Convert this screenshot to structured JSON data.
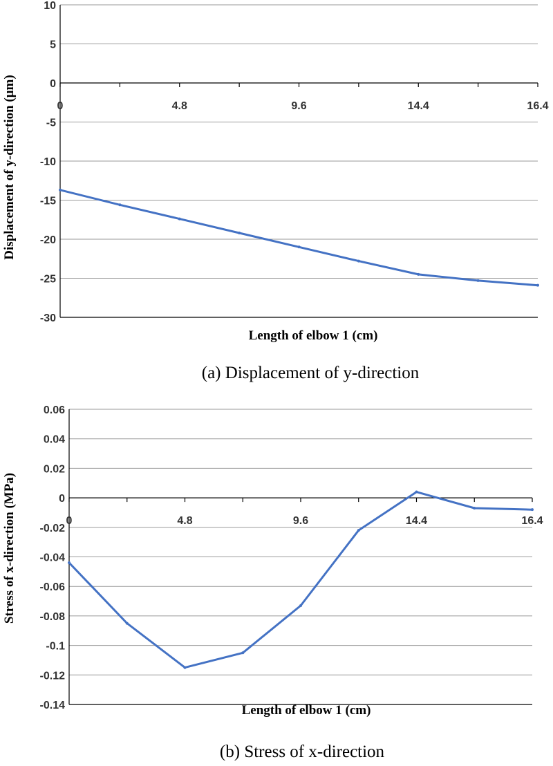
{
  "chart_data": [
    {
      "type": "line",
      "id": "a",
      "caption": "(a) Displacement of y-direction",
      "xlabel": "Length of elbow 1 (cm)",
      "ylabel": "Displacement of y-direction (μm)",
      "x_tick_labels": [
        "0",
        "4.8",
        "9.6",
        "14.4",
        "16.4"
      ],
      "y_ticks": [
        10,
        5,
        0,
        -5,
        -10,
        -15,
        -20,
        -25,
        -30
      ],
      "y_tick_labels": [
        "10",
        "5",
        "0",
        "-5",
        "-10",
        "-15",
        "-20",
        "-25",
        "-30"
      ],
      "ylim": [
        -30,
        10
      ],
      "num_categories": 9,
      "values": [
        -13.7,
        -15.6,
        -17.4,
        -19.2,
        -21.0,
        -22.8,
        -24.5,
        -25.3,
        -25.9
      ],
      "series_color": "#4472c4"
    },
    {
      "type": "line",
      "id": "b",
      "caption": "(b) Stress of x-direction",
      "xlabel": "Length of elbow 1 (cm)",
      "ylabel": "Stress of x-direction (MPa)",
      "x_tick_labels": [
        "0",
        "4.8",
        "9.6",
        "14.4",
        "16.4"
      ],
      "y_ticks": [
        0.06,
        0.04,
        0.02,
        0,
        -0.02,
        -0.04,
        -0.06,
        -0.08,
        -0.1,
        -0.12,
        -0.14
      ],
      "y_tick_labels": [
        "0.06",
        "0.04",
        "0.02",
        "0",
        "-0.02",
        "-0.04",
        "-0.06",
        "-0.08",
        "-0.1",
        "-0.12",
        "-0.14"
      ],
      "ylim": [
        -0.14,
        0.06
      ],
      "num_categories": 9,
      "values": [
        -0.044,
        -0.085,
        -0.115,
        -0.105,
        -0.073,
        -0.022,
        0.004,
        -0.007,
        -0.008
      ],
      "series_color": "#4472c4"
    }
  ]
}
